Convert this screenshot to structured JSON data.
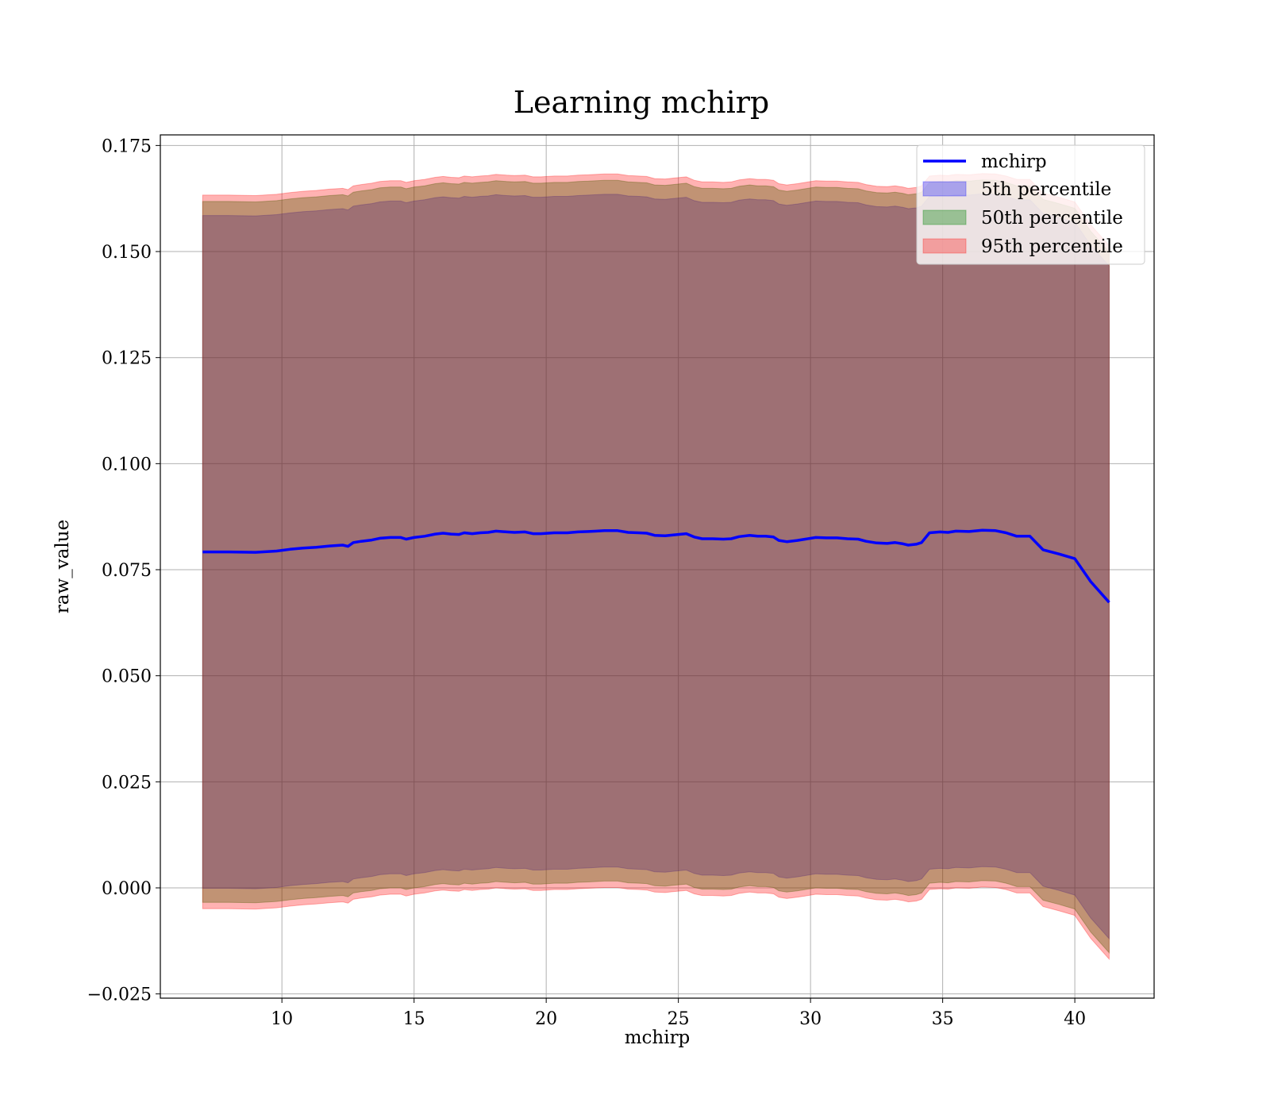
{
  "chart_data": {
    "type": "area",
    "title": "Learning mchirp",
    "xlabel": "mchirp",
    "ylabel": "raw_value",
    "xlim": [
      5.4,
      43.0
    ],
    "ylim": [
      -0.026,
      0.1775
    ],
    "grid": true,
    "legend_position": "top-right",
    "x_ticks": [
      10,
      15,
      20,
      25,
      30,
      35,
      40
    ],
    "x_tick_labels": [
      "10",
      "15",
      "20",
      "25",
      "30",
      "35",
      "40"
    ],
    "y_ticks": [
      -0.025,
      0.0,
      0.025,
      0.05,
      0.075,
      0.1,
      0.125,
      0.15,
      0.175
    ],
    "y_tick_labels": [
      "−0.025",
      "0.000",
      "0.025",
      "0.050",
      "0.075",
      "0.100",
      "0.125",
      "0.150",
      "0.175"
    ],
    "line": {
      "name": "mchirp",
      "color": "#0000ff",
      "x": [
        7.0,
        8.0,
        9.0,
        9.8,
        10.3,
        10.8,
        11.3,
        11.8,
        12.3,
        12.5,
        12.7,
        13.0,
        13.4,
        13.7,
        14.1,
        14.5,
        14.7,
        15.0,
        15.4,
        15.8,
        16.1,
        16.4,
        16.7,
        16.9,
        17.2,
        17.5,
        17.8,
        18.1,
        18.5,
        18.8,
        19.2,
        19.5,
        19.8,
        20.3,
        20.8,
        21.2,
        21.6,
        21.9,
        22.2,
        22.7,
        23.1,
        23.5,
        23.8,
        24.1,
        24.5,
        24.8,
        25.3,
        25.6,
        25.9,
        26.3,
        26.7,
        27.0,
        27.3,
        27.7,
        28.0,
        28.3,
        28.6,
        28.8,
        29.1,
        29.5,
        29.8,
        30.2,
        30.6,
        31.0,
        31.4,
        31.8,
        32.1,
        32.5,
        32.9,
        33.2,
        33.5,
        33.7,
        34.0,
        34.2,
        34.5,
        34.9,
        35.2,
        35.5,
        36.0,
        36.5,
        37.0,
        37.4,
        37.8,
        38.3,
        38.8,
        39.4,
        40.0,
        40.6,
        41.3
      ],
      "y": [
        0.0792,
        0.0792,
        0.0791,
        0.0794,
        0.0798,
        0.0801,
        0.0803,
        0.0806,
        0.0808,
        0.0805,
        0.0814,
        0.0817,
        0.082,
        0.0824,
        0.0826,
        0.0826,
        0.0822,
        0.0826,
        0.0829,
        0.0834,
        0.0836,
        0.0834,
        0.0833,
        0.0837,
        0.0835,
        0.0837,
        0.0838,
        0.0841,
        0.0839,
        0.0838,
        0.0839,
        0.0835,
        0.0835,
        0.0837,
        0.0837,
        0.0839,
        0.084,
        0.0841,
        0.0842,
        0.0842,
        0.0838,
        0.0837,
        0.0836,
        0.0831,
        0.083,
        0.0832,
        0.0835,
        0.0827,
        0.0823,
        0.0823,
        0.0822,
        0.0823,
        0.0828,
        0.0831,
        0.0829,
        0.0829,
        0.0827,
        0.0819,
        0.0816,
        0.0819,
        0.0822,
        0.0826,
        0.0825,
        0.0825,
        0.0823,
        0.0822,
        0.0817,
        0.0813,
        0.0812,
        0.0814,
        0.0811,
        0.0808,
        0.081,
        0.0814,
        0.0837,
        0.0839,
        0.0838,
        0.0841,
        0.084,
        0.0843,
        0.0842,
        0.0837,
        0.0829,
        0.0829,
        0.0797,
        0.0787,
        0.0776,
        0.0722,
        0.0673
      ]
    },
    "bands": [
      {
        "name": "5th percentile",
        "color": "#0000ff",
        "alpha": 0.3,
        "half_width": [
          0.0793,
          0.0793,
          0.0793,
          0.0793,
          0.0793,
          0.0793,
          0.0793,
          0.0793,
          0.0793,
          0.0793,
          0.0793,
          0.0793,
          0.0793,
          0.0793,
          0.0793,
          0.0793,
          0.0793,
          0.0793,
          0.0793,
          0.0793,
          0.0793,
          0.0793,
          0.0793,
          0.0793,
          0.0793,
          0.0793,
          0.0793,
          0.0793,
          0.0793,
          0.0793,
          0.0793,
          0.0793,
          0.0793,
          0.0793,
          0.0793,
          0.0793,
          0.0793,
          0.0793,
          0.0793,
          0.0793,
          0.0793,
          0.0793,
          0.0793,
          0.0793,
          0.0793,
          0.0793,
          0.0793,
          0.0793,
          0.0793,
          0.0793,
          0.0793,
          0.0793,
          0.0793,
          0.0793,
          0.0793,
          0.0793,
          0.0793,
          0.0793,
          0.0793,
          0.0793,
          0.0793,
          0.0793,
          0.0793,
          0.0793,
          0.0793,
          0.0793,
          0.0793,
          0.0793,
          0.0793,
          0.0793,
          0.0793,
          0.0793,
          0.0793,
          0.0793,
          0.0793,
          0.0793,
          0.0793,
          0.0793,
          0.0793,
          0.0793,
          0.0793,
          0.0793,
          0.0793,
          0.0793,
          0.0793,
          0.0793,
          0.0793,
          0.0793,
          0.0793
        ]
      },
      {
        "name": "50th percentile",
        "color": "#008000",
        "alpha": 0.35,
        "half_width": [
          0.0826,
          0.0826,
          0.0826,
          0.0826,
          0.0826,
          0.0826,
          0.0826,
          0.0826,
          0.0826,
          0.0826,
          0.0826,
          0.0826,
          0.0826,
          0.0826,
          0.0826,
          0.0826,
          0.0826,
          0.0826,
          0.0826,
          0.0826,
          0.0826,
          0.0826,
          0.0826,
          0.0826,
          0.0826,
          0.0826,
          0.0826,
          0.0826,
          0.0826,
          0.0826,
          0.0826,
          0.0826,
          0.0826,
          0.0826,
          0.0826,
          0.0826,
          0.0826,
          0.0826,
          0.0826,
          0.0826,
          0.0826,
          0.0826,
          0.0826,
          0.0826,
          0.0826,
          0.0826,
          0.0826,
          0.0826,
          0.0826,
          0.0826,
          0.0826,
          0.0826,
          0.0826,
          0.0826,
          0.0826,
          0.0826,
          0.0826,
          0.0826,
          0.0826,
          0.0826,
          0.0826,
          0.0826,
          0.0826,
          0.0826,
          0.0826,
          0.0826,
          0.0826,
          0.0826,
          0.0826,
          0.0826,
          0.0826,
          0.0826,
          0.0826,
          0.0826,
          0.0826,
          0.0826,
          0.0826,
          0.0826,
          0.0826,
          0.0826,
          0.0826,
          0.0826,
          0.0826,
          0.0826,
          0.0826,
          0.0826,
          0.0826,
          0.0826,
          0.0826
        ]
      },
      {
        "name": "95th percentile",
        "color": "#ff0000",
        "alpha": 0.3,
        "half_width": [
          0.0841,
          0.0841,
          0.0841,
          0.0841,
          0.0841,
          0.0841,
          0.0841,
          0.0841,
          0.0841,
          0.0841,
          0.0841,
          0.0841,
          0.0841,
          0.0841,
          0.0841,
          0.0841,
          0.0841,
          0.0841,
          0.0841,
          0.0841,
          0.0841,
          0.0841,
          0.0841,
          0.0841,
          0.0841,
          0.0841,
          0.0841,
          0.0841,
          0.0841,
          0.0841,
          0.0841,
          0.0841,
          0.0841,
          0.0841,
          0.0841,
          0.0841,
          0.0841,
          0.0841,
          0.0841,
          0.0841,
          0.0841,
          0.0841,
          0.0841,
          0.0841,
          0.0841,
          0.0841,
          0.0841,
          0.0841,
          0.0841,
          0.0841,
          0.0841,
          0.0841,
          0.0841,
          0.0841,
          0.0841,
          0.0841,
          0.0841,
          0.0841,
          0.0841,
          0.0841,
          0.0841,
          0.0841,
          0.0841,
          0.0841,
          0.0841,
          0.0841,
          0.0841,
          0.0841,
          0.0841,
          0.0841,
          0.0841,
          0.0841,
          0.0841,
          0.0841,
          0.0841,
          0.0841,
          0.0841,
          0.0841,
          0.0841,
          0.0841,
          0.0841,
          0.0841,
          0.0841,
          0.0841,
          0.0841,
          0.0841,
          0.0841,
          0.0841,
          0.0841
        ]
      }
    ],
    "legend": [
      "mchirp",
      "5th percentile",
      "50th percentile",
      "95th percentile"
    ]
  }
}
